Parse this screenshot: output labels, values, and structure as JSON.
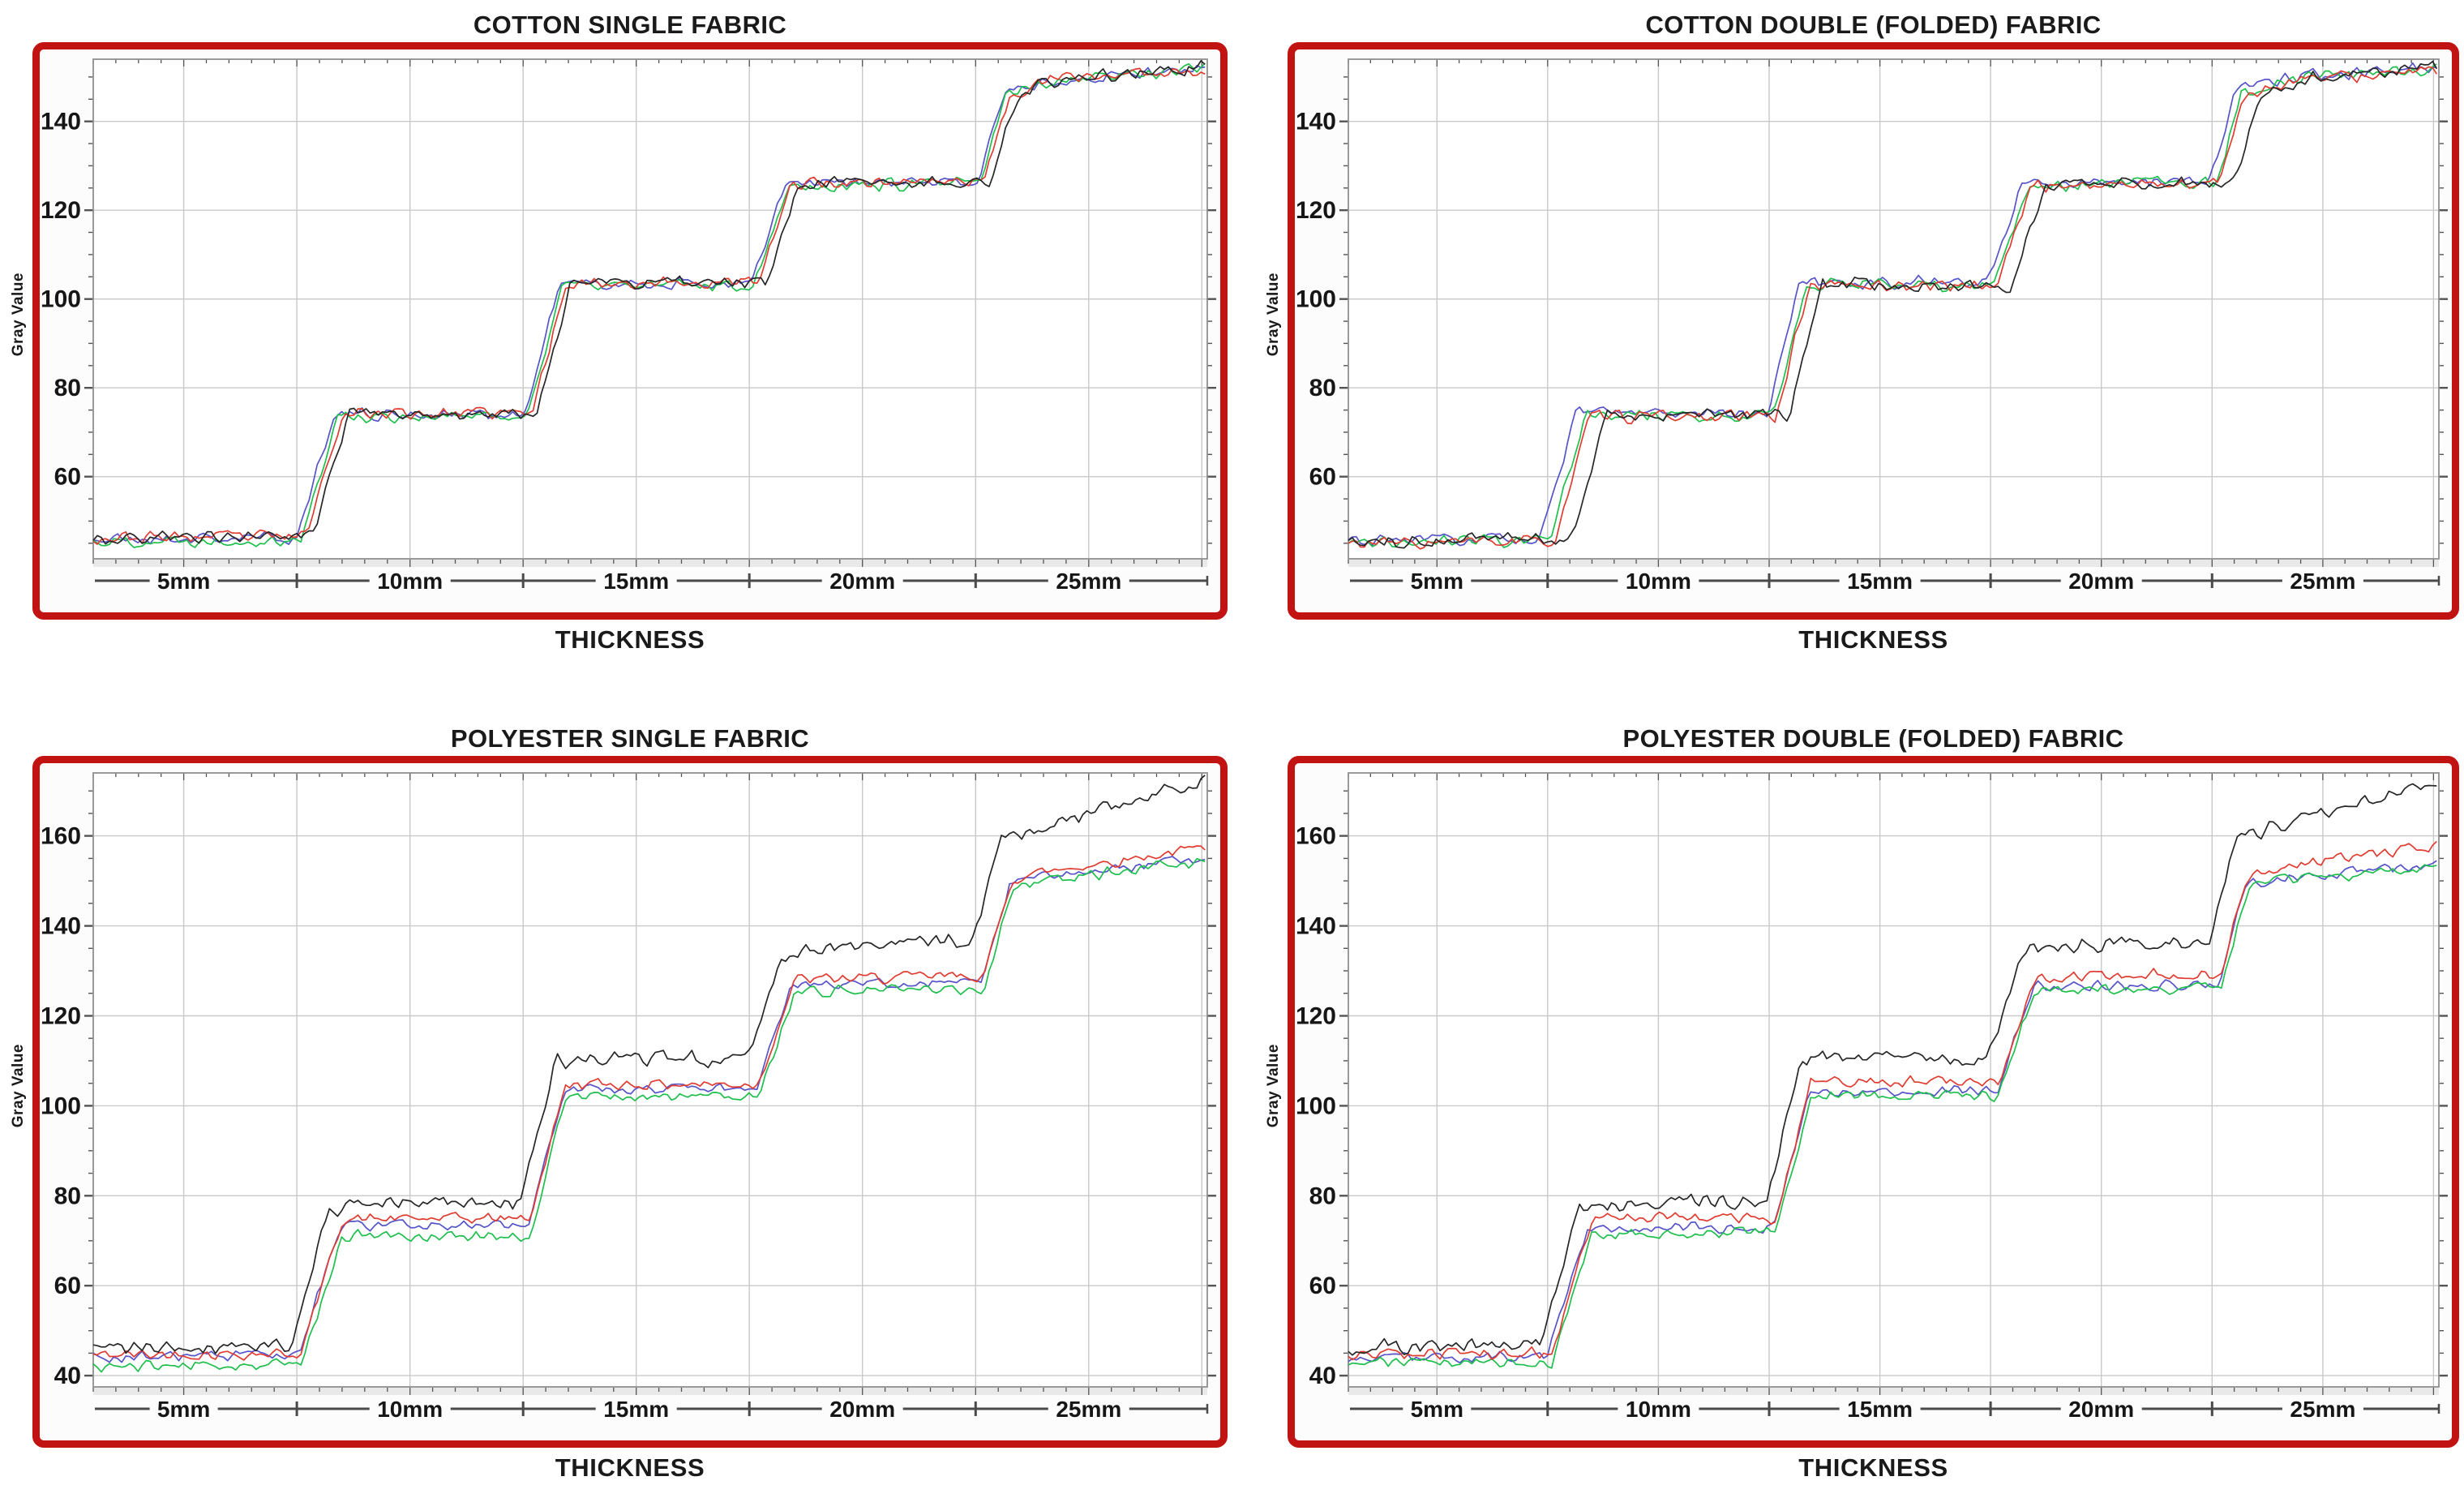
{
  "page": {
    "background": "#ffffff"
  },
  "style": {
    "frame_color": "#c21313",
    "grid_color": "#c9c9c9",
    "plot_border_color": "#8f8f8f",
    "tick_color": "#555555",
    "ruler_color": "#4a4a4a",
    "band_color": "#e9e9e9",
    "text_color": "#161616",
    "series_palette": {
      "black": "#262626",
      "red": "#e03c31",
      "green": "#1fbf4e",
      "blue": "#5753c9"
    }
  },
  "chart_data": [
    {
      "id": "cotton-single",
      "type": "line",
      "title": "COTTON SINGLE FABRIC",
      "xlabel": "THICKNESS",
      "ylabel": "Gray Value",
      "x_unit": "mm",
      "xlim": [
        3,
        27.62
      ],
      "x_ticks": [
        5,
        10,
        15,
        20,
        25
      ],
      "x_tick_labels": [
        "5mm",
        "10mm",
        "15mm",
        "20mm",
        "25mm"
      ],
      "x_separators": [
        7.5,
        12.5,
        17.5,
        22.5
      ],
      "x_grid_step": 2.5,
      "ylim": [
        41.5,
        154
      ],
      "yticks": [
        60,
        80,
        100,
        120,
        140
      ],
      "y_minor_step": 5,
      "grid": true,
      "legend": "none",
      "series": [
        {
          "name": "blue",
          "color": "#5753c9",
          "seed": 21,
          "noise": 1.3,
          "points": [
            [
              3,
              45.8
            ],
            [
              7.5,
              46.2
            ],
            [
              8.3,
              74
            ],
            [
              12.55,
              74
            ],
            [
              13.3,
              103.4
            ],
            [
              17.55,
              103.4
            ],
            [
              18.3,
              125.8
            ],
            [
              22.55,
              126.3
            ],
            [
              23.1,
              146
            ],
            [
              24.2,
              149.5
            ],
            [
              27.62,
              151.8
            ]
          ]
        },
        {
          "name": "green",
          "color": "#1fbf4e",
          "seed": 22,
          "noise": 1.3,
          "points": [
            [
              3,
              45.4
            ],
            [
              7.6,
              45.9
            ],
            [
              8.4,
              73.6
            ],
            [
              12.6,
              73.6
            ],
            [
              13.35,
              103
            ],
            [
              17.6,
              103.2
            ],
            [
              18.35,
              125.5
            ],
            [
              22.6,
              126
            ],
            [
              23.15,
              145.8
            ],
            [
              24.3,
              149.5
            ],
            [
              27.62,
              152
            ]
          ]
        },
        {
          "name": "red",
          "color": "#e03c31",
          "seed": 23,
          "noise": 1.3,
          "points": [
            [
              3,
              46.2
            ],
            [
              7.7,
              46.6
            ],
            [
              8.5,
              74.3
            ],
            [
              12.7,
              74.3
            ],
            [
              13.45,
              103.7
            ],
            [
              17.7,
              103.7
            ],
            [
              18.45,
              126.2
            ],
            [
              22.7,
              126.7
            ],
            [
              23.25,
              146.2
            ],
            [
              24.4,
              149.8
            ],
            [
              27.62,
              151.6
            ]
          ]
        },
        {
          "name": "black",
          "color": "#262626",
          "seed": 24,
          "noise": 1.4,
          "points": [
            [
              3,
              46
            ],
            [
              7.85,
              46.5
            ],
            [
              8.65,
              74.2
            ],
            [
              12.8,
              74.2
            ],
            [
              13.55,
              103.6
            ],
            [
              17.85,
              103.6
            ],
            [
              18.6,
              126
            ],
            [
              22.85,
              126.5
            ],
            [
              23.4,
              146
            ],
            [
              24.5,
              150
            ],
            [
              27.62,
              152.2
            ]
          ]
        }
      ]
    },
    {
      "id": "cotton-double",
      "type": "line",
      "title": "COTTON DOUBLE (FOLDED) FABRIC",
      "xlabel": "THICKNESS",
      "ylabel": "Gray Value",
      "x_unit": "mm",
      "xlim": [
        3,
        27.62
      ],
      "x_ticks": [
        5,
        10,
        15,
        20,
        25
      ],
      "x_tick_labels": [
        "5mm",
        "10mm",
        "15mm",
        "20mm",
        "25mm"
      ],
      "x_separators": [
        7.5,
        12.5,
        17.5,
        22.5
      ],
      "x_grid_step": 2.5,
      "ylim": [
        41.5,
        154
      ],
      "yticks": [
        60,
        80,
        100,
        120,
        140
      ],
      "y_minor_step": 5,
      "grid": true,
      "legend": "none",
      "series": [
        {
          "name": "blue",
          "color": "#5753c9",
          "seed": 31,
          "noise": 1.3,
          "points": [
            [
              3,
              45.5
            ],
            [
              7.35,
              46
            ],
            [
              8.15,
              74.4
            ],
            [
              12.45,
              74.4
            ],
            [
              13.2,
              103.8
            ],
            [
              17.45,
              103.8
            ],
            [
              18.2,
              126.3
            ],
            [
              22.45,
              126.8
            ],
            [
              23.0,
              146.5
            ],
            [
              24.1,
              150
            ],
            [
              27.62,
              152.3
            ]
          ]
        },
        {
          "name": "green",
          "color": "#1fbf4e",
          "seed": 32,
          "noise": 1.3,
          "points": [
            [
              3,
              45.2
            ],
            [
              7.55,
              45.7
            ],
            [
              8.35,
              73.9
            ],
            [
              12.6,
              73.9
            ],
            [
              13.35,
              103.3
            ],
            [
              17.6,
              103.3
            ],
            [
              18.35,
              125.7
            ],
            [
              22.6,
              126.2
            ],
            [
              23.15,
              146
            ],
            [
              24.3,
              149.6
            ],
            [
              27.62,
              151.8
            ]
          ]
        },
        {
          "name": "red",
          "color": "#e03c31",
          "seed": 33,
          "noise": 1.3,
          "points": [
            [
              3,
              44.9
            ],
            [
              7.65,
              45.4
            ],
            [
              8.45,
              73.5
            ],
            [
              12.65,
              73.5
            ],
            [
              13.4,
              103.1
            ],
            [
              17.65,
              103.1
            ],
            [
              18.4,
              125.5
            ],
            [
              22.65,
              126
            ],
            [
              23.2,
              145.7
            ],
            [
              24.35,
              149.3
            ],
            [
              27.62,
              151.4
            ]
          ]
        },
        {
          "name": "black",
          "color": "#262626",
          "seed": 34,
          "noise": 1.4,
          "points": [
            [
              3,
              45.4
            ],
            [
              8.0,
              45.9
            ],
            [
              8.85,
              73.8
            ],
            [
              12.95,
              73.8
            ],
            [
              13.7,
              103.2
            ],
            [
              18.0,
              103.2
            ],
            [
              18.75,
              125.8
            ],
            [
              23.0,
              126.3
            ],
            [
              23.55,
              146
            ],
            [
              24.6,
              149.8
            ],
            [
              27.62,
              152.4
            ]
          ]
        }
      ]
    },
    {
      "id": "polyester-single",
      "type": "line",
      "title": "POLYESTER SINGLE FABRIC",
      "xlabel": "THICKNESS",
      "ylabel": "Gray Value",
      "x_unit": "mm",
      "xlim": [
        3,
        27.62
      ],
      "x_ticks": [
        5,
        10,
        15,
        20,
        25
      ],
      "x_tick_labels": [
        "5mm",
        "10mm",
        "15mm",
        "20mm",
        "25mm"
      ],
      "x_separators": [
        7.5,
        12.5,
        17.5,
        22.5
      ],
      "x_grid_step": 2.5,
      "ylim": [
        37.5,
        174
      ],
      "yticks": [
        40,
        60,
        80,
        100,
        120,
        140,
        160
      ],
      "y_minor_step": 5,
      "grid": true,
      "legend": "none",
      "series": [
        {
          "name": "blue",
          "color": "#5753c9",
          "seed": 43,
          "noise": 1.1,
          "points": [
            [
              3,
              44.2
            ],
            [
              7.55,
              44.6
            ],
            [
              8.45,
              73.2
            ],
            [
              12.6,
              73.6
            ],
            [
              13.4,
              103.6
            ],
            [
              17.65,
              103.6
            ],
            [
              18.45,
              127
            ],
            [
              22.65,
              127.6
            ],
            [
              23.25,
              149.5
            ],
            [
              23.95,
              151
            ],
            [
              27.62,
              155
            ]
          ]
        },
        {
          "name": "green",
          "color": "#1fbf4e",
          "seed": 44,
          "noise": 1.2,
          "points": [
            [
              3,
              42
            ],
            [
              7.6,
              42.5
            ],
            [
              8.5,
              71
            ],
            [
              12.65,
              71
            ],
            [
              13.45,
              102
            ],
            [
              17.7,
              102
            ],
            [
              18.5,
              125.5
            ],
            [
              22.7,
              126
            ],
            [
              23.3,
              148.5
            ],
            [
              24,
              150
            ],
            [
              27.62,
              154.2
            ]
          ]
        },
        {
          "name": "red",
          "color": "#e03c31",
          "seed": 42,
          "noise": 1.2,
          "points": [
            [
              3,
              44.6
            ],
            [
              7.6,
              45
            ],
            [
              8.5,
              74.8
            ],
            [
              12.65,
              75
            ],
            [
              13.45,
              104.8
            ],
            [
              17.7,
              104.8
            ],
            [
              18.5,
              128
            ],
            [
              22.7,
              129
            ],
            [
              23.3,
              150.5
            ],
            [
              24,
              152
            ],
            [
              27.62,
              157.5
            ]
          ]
        },
        {
          "name": "black",
          "color": "#262626",
          "seed": 41,
          "noise": 1.6,
          "points": [
            [
              3,
              46
            ],
            [
              7.35,
              47
            ],
            [
              8.2,
              76.5
            ],
            [
              9.3,
              78.5
            ],
            [
              12.45,
              78.5
            ],
            [
              13.2,
              109.5
            ],
            [
              14,
              110.5
            ],
            [
              17.45,
              110.5
            ],
            [
              18.2,
              133.5
            ],
            [
              19.2,
              135
            ],
            [
              22.45,
              137
            ],
            [
              23.05,
              159.5
            ],
            [
              23.7,
              161
            ],
            [
              27.62,
              172.5
            ]
          ]
        }
      ]
    },
    {
      "id": "polyester-double",
      "type": "line",
      "title": "POLYESTER DOUBLE (FOLDED) FABRIC",
      "xlabel": "THICKNESS",
      "ylabel": "Gray Value",
      "x_unit": "mm",
      "xlim": [
        3,
        27.62
      ],
      "x_ticks": [
        5,
        10,
        15,
        20,
        25
      ],
      "x_tick_labels": [
        "5mm",
        "10mm",
        "15mm",
        "20mm",
        "25mm"
      ],
      "x_separators": [
        7.5,
        12.5,
        17.5,
        22.5
      ],
      "x_grid_step": 2.5,
      "ylim": [
        37.5,
        174
      ],
      "yticks": [
        40,
        60,
        80,
        100,
        120,
        140,
        160
      ],
      "y_minor_step": 5,
      "grid": true,
      "legend": "none",
      "series": [
        {
          "name": "blue",
          "color": "#5753c9",
          "seed": 53,
          "noise": 1.1,
          "points": [
            [
              3,
              43.8
            ],
            [
              7.5,
              44.2
            ],
            [
              8.4,
              72.8
            ],
            [
              12.6,
              73
            ],
            [
              13.4,
              103.2
            ],
            [
              17.65,
              103.2
            ],
            [
              18.45,
              126.5
            ],
            [
              22.65,
              127
            ],
            [
              23.25,
              149
            ],
            [
              23.95,
              150.5
            ],
            [
              27.62,
              153.8
            ]
          ]
        },
        {
          "name": "green",
          "color": "#1fbf4e",
          "seed": 54,
          "noise": 1.2,
          "points": [
            [
              3,
              42.8
            ],
            [
              7.6,
              43.2
            ],
            [
              8.5,
              71.5
            ],
            [
              12.65,
              71.5
            ],
            [
              13.45,
              102.2
            ],
            [
              17.7,
              102.2
            ],
            [
              18.5,
              125.8
            ],
            [
              22.7,
              126.2
            ],
            [
              23.3,
              148.5
            ],
            [
              24,
              150
            ],
            [
              27.62,
              152.8
            ]
          ]
        },
        {
          "name": "red",
          "color": "#e03c31",
          "seed": 52,
          "noise": 1.2,
          "points": [
            [
              3,
              44.8
            ],
            [
              7.6,
              45.2
            ],
            [
              8.5,
              75
            ],
            [
              12.65,
              75.2
            ],
            [
              13.45,
              105.5
            ],
            [
              17.7,
              105.3
            ],
            [
              18.5,
              128.5
            ],
            [
              22.7,
              129.5
            ],
            [
              23.3,
              151
            ],
            [
              24,
              152.5
            ],
            [
              27.62,
              158
            ]
          ]
        },
        {
          "name": "black",
          "color": "#262626",
          "seed": 51,
          "noise": 1.6,
          "points": [
            [
              3,
              46.2
            ],
            [
              7.35,
              47
            ],
            [
              8.2,
              77
            ],
            [
              9.3,
              79
            ],
            [
              12.45,
              78.5
            ],
            [
              13.2,
              110
            ],
            [
              14,
              111
            ],
            [
              17.45,
              110.5
            ],
            [
              18.2,
              134
            ],
            [
              19.2,
              135.5
            ],
            [
              22.45,
              137
            ],
            [
              23.05,
              160
            ],
            [
              23.7,
              161.5
            ],
            [
              27.62,
              173
            ]
          ]
        }
      ]
    }
  ]
}
